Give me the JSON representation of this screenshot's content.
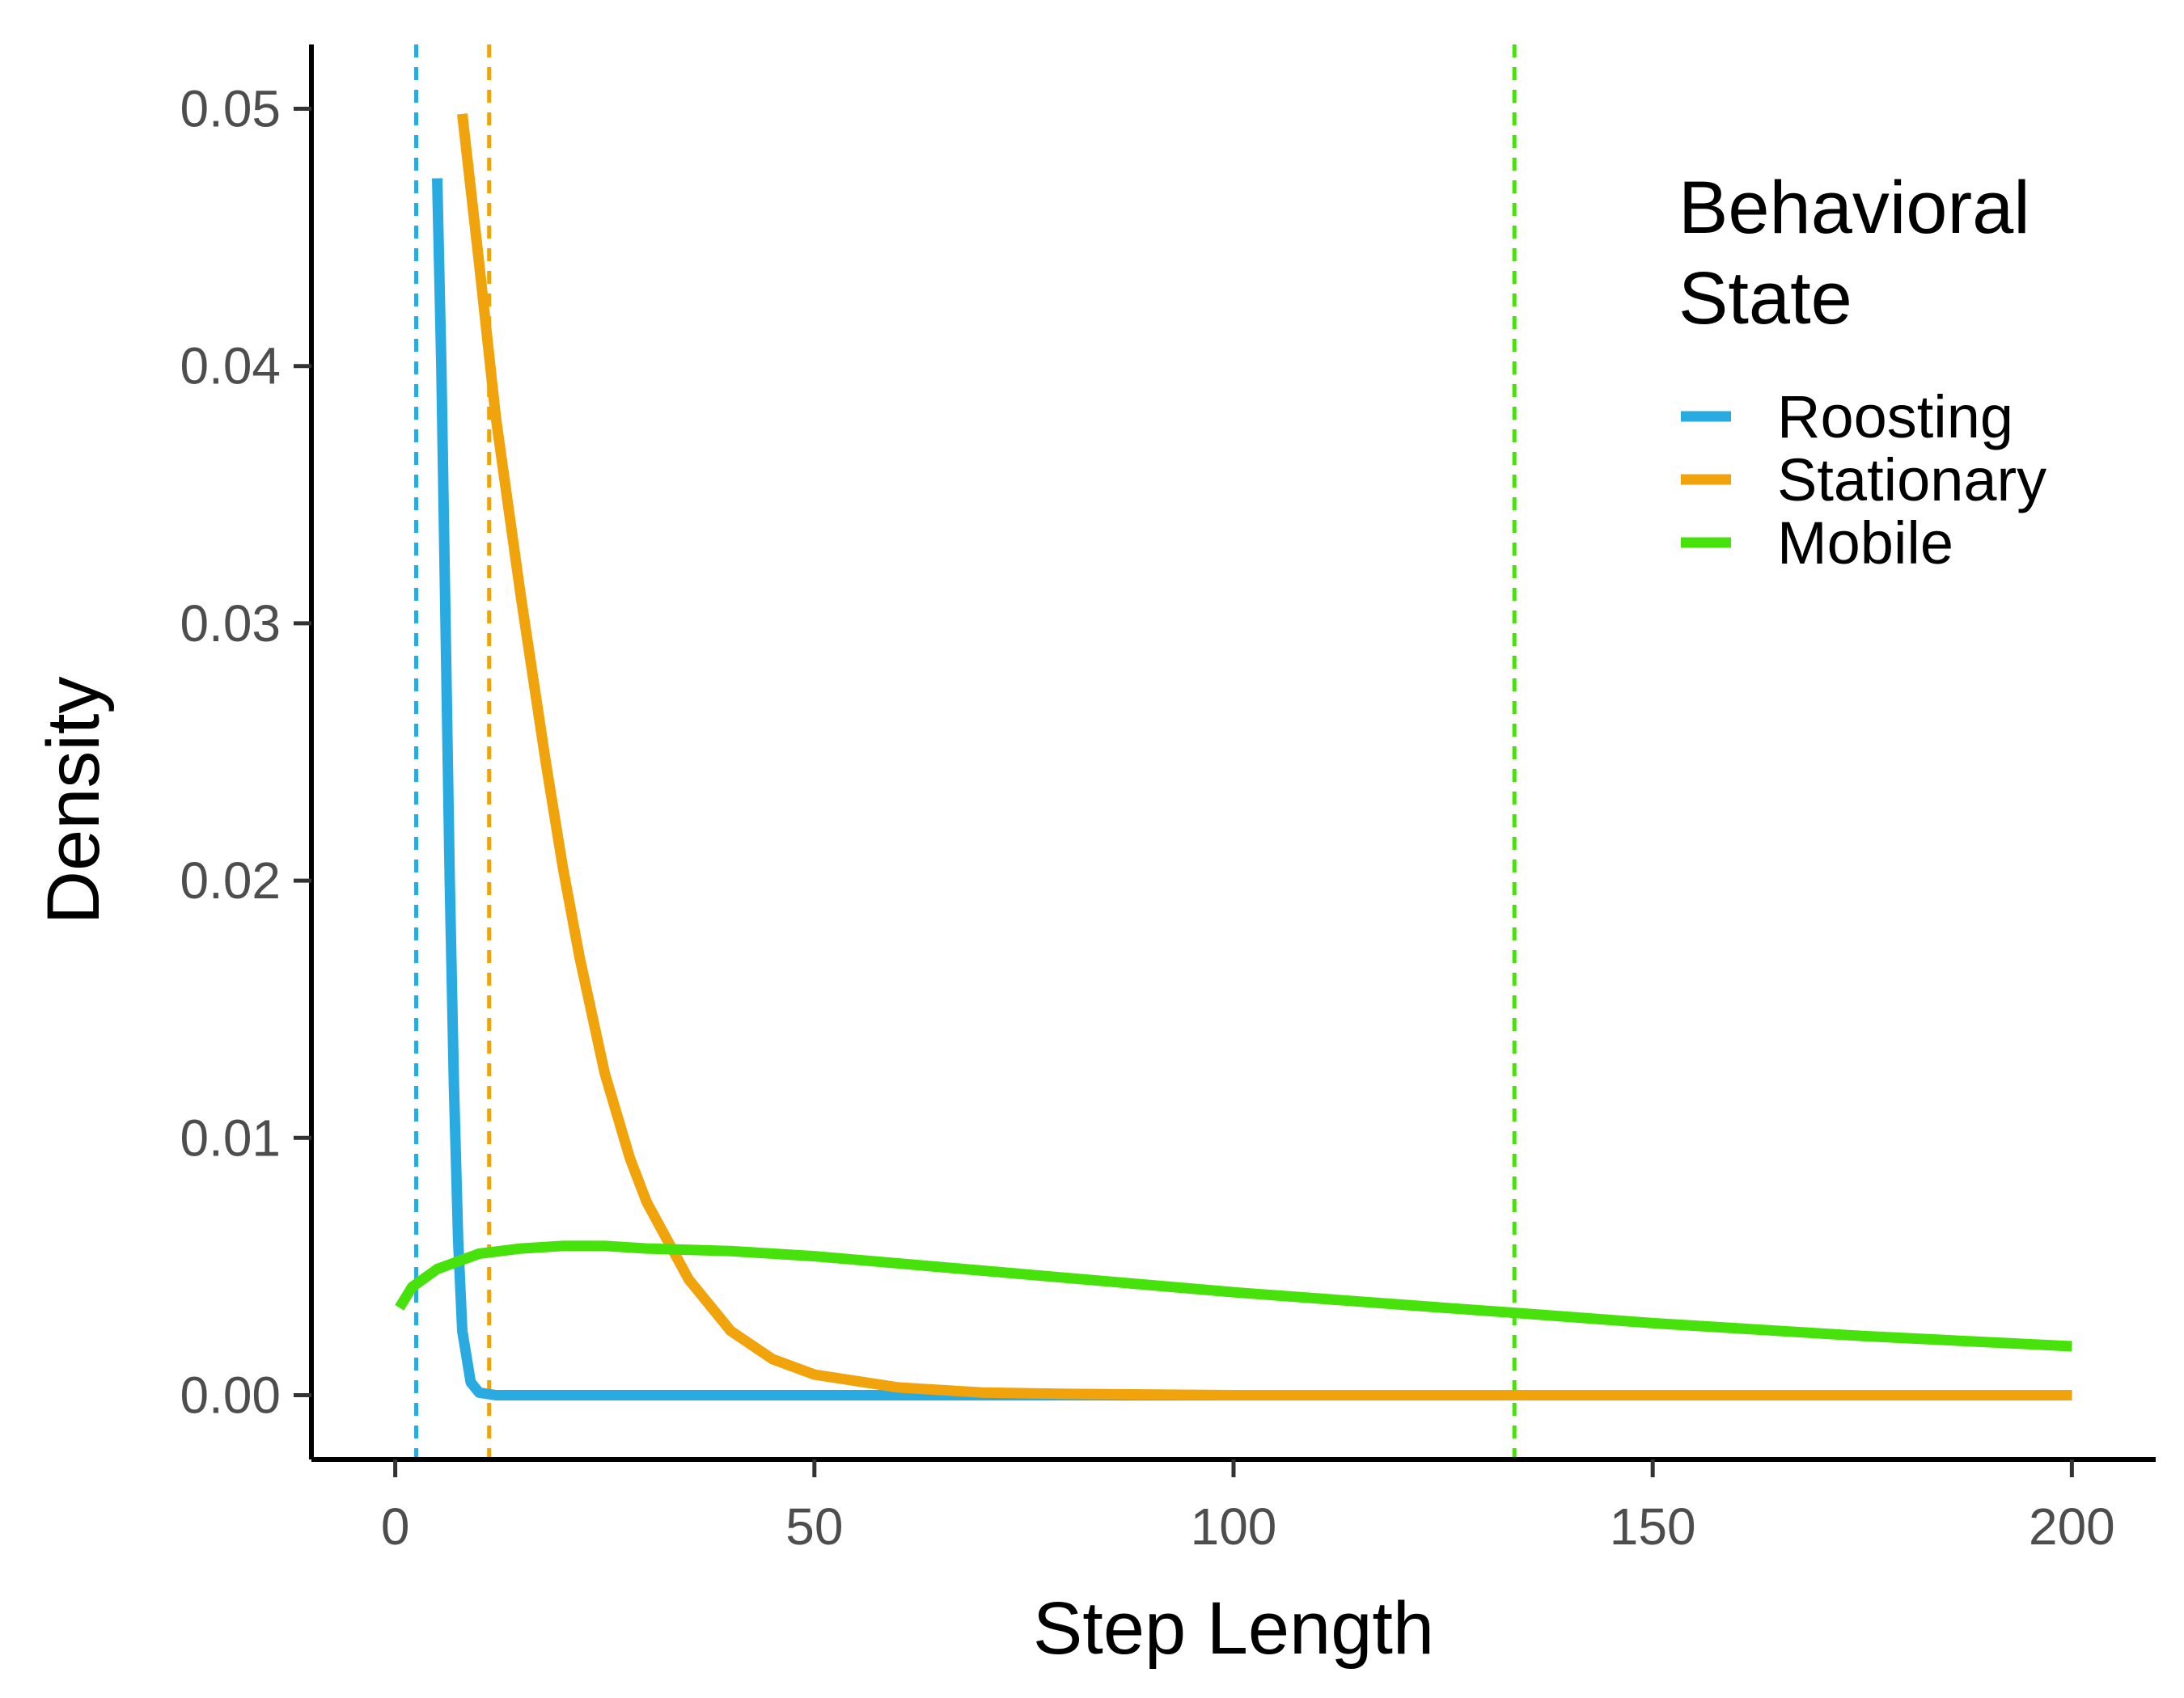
{
  "chart_data": {
    "type": "line",
    "title": "",
    "xlabel": "Step Length",
    "ylabel": "Density",
    "xlim": [
      -10,
      210
    ],
    "ylim": [
      -0.0025,
      0.0525
    ],
    "x_ticks": [
      0,
      50,
      100,
      150,
      200
    ],
    "x_tick_labels": [
      "0",
      "50",
      "100",
      "150",
      "200"
    ],
    "y_ticks": [
      0.0,
      0.01,
      0.02,
      0.03,
      0.04,
      0.05
    ],
    "y_tick_labels": [
      "0.00",
      "0.01",
      "0.02",
      "0.03",
      "0.04",
      "0.05"
    ],
    "grid": false,
    "legend": {
      "title_lines": [
        "Behavioral",
        "State"
      ],
      "position": "top-right"
    },
    "series": [
      {
        "name": "Roosting",
        "color": "#29ABE2",
        "x": [
          5,
          5.5,
          6,
          6.5,
          7,
          7.5,
          8,
          9,
          10,
          12,
          15,
          20,
          30,
          50,
          100,
          150,
          200
        ],
        "y": [
          0.0473,
          0.04,
          0.03,
          0.02,
          0.012,
          0.006,
          0.0025,
          0.0005,
          0.0001,
          0.0,
          0.0,
          0.0,
          0.0,
          0.0,
          0.0,
          0.0,
          0.0
        ]
      },
      {
        "name": "Stationary",
        "color": "#F0A30A",
        "x": [
          8,
          10,
          12,
          15,
          18,
          20,
          22,
          25,
          28,
          30,
          35,
          40,
          45,
          50,
          60,
          70,
          80,
          100,
          150,
          200
        ],
        "y": [
          0.0498,
          0.044,
          0.038,
          0.031,
          0.0245,
          0.0205,
          0.017,
          0.0125,
          0.0092,
          0.0075,
          0.0045,
          0.0025,
          0.0014,
          0.0008,
          0.0003,
          0.0001,
          5e-05,
          0.0,
          0.0,
          0.0
        ]
      },
      {
        "name": "Mobile",
        "color": "#47E10C",
        "x": [
          0.5,
          2,
          5,
          10,
          15,
          20,
          25,
          30,
          40,
          50,
          75,
          100,
          125,
          133.5,
          150,
          175,
          200
        ],
        "y": [
          0.0034,
          0.0042,
          0.0049,
          0.0055,
          0.0057,
          0.0058,
          0.0058,
          0.0057,
          0.0056,
          0.0054,
          0.0047,
          0.004,
          0.0034,
          0.0032,
          0.0028,
          0.0023,
          0.0019
        ]
      }
    ],
    "vlines": [
      {
        "series": "Roosting",
        "x": 2.5,
        "color": "#29ABE2",
        "style": "dashed"
      },
      {
        "series": "Stationary",
        "x": 11.2,
        "color": "#F0A30A",
        "style": "dashed"
      },
      {
        "series": "Mobile",
        "x": 133.5,
        "color": "#47E10C",
        "style": "dashed"
      }
    ]
  }
}
